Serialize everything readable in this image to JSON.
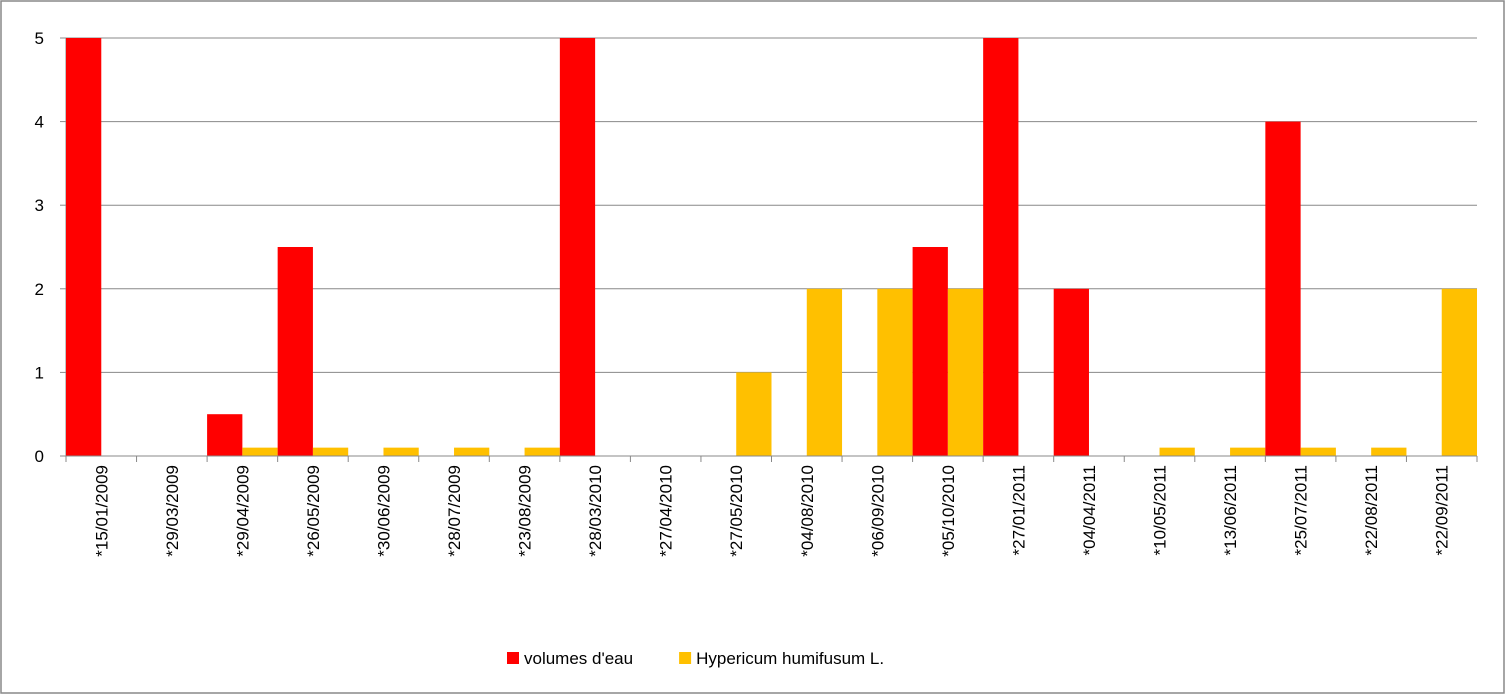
{
  "chart_data": {
    "type": "bar",
    "categories": [
      "*15/01/2009",
      "*29/03/2009",
      "*29/04/2009",
      "*26/05/2009",
      "*30/06/2009",
      "*28/07/2009",
      "*23/08/2009",
      "*28/03/2010",
      "*27/04/2010",
      "*27/05/2010",
      "*04/08/2010",
      "*06/09/2010",
      "*05/10/2010",
      "*27/01/2011",
      "*04/04/2011",
      "*10/05/2011",
      "*13/06/2011",
      "*25/07/2011",
      "*22/08/2011",
      "*22/09/2011"
    ],
    "series": [
      {
        "name": "volumes d'eau",
        "color": "#ff0000",
        "values": [
          5,
          0,
          0.5,
          2.5,
          0,
          0,
          0,
          5,
          0,
          0,
          0,
          0,
          2.5,
          5,
          2,
          0,
          0,
          4,
          0,
          0
        ]
      },
      {
        "name": "Hypericum humifusum L.",
        "color": "#ffc000",
        "values": [
          0,
          0,
          0.1,
          0.1,
          0.1,
          0.1,
          0.1,
          0,
          0,
          1,
          2,
          2,
          2,
          0,
          0,
          0.1,
          0.1,
          0.1,
          0.1,
          2
        ]
      }
    ],
    "ylim": [
      0,
      5
    ],
    "yticks": [
      0,
      1,
      2,
      3,
      4,
      5
    ],
    "grid": true,
    "legend": "bottom"
  }
}
